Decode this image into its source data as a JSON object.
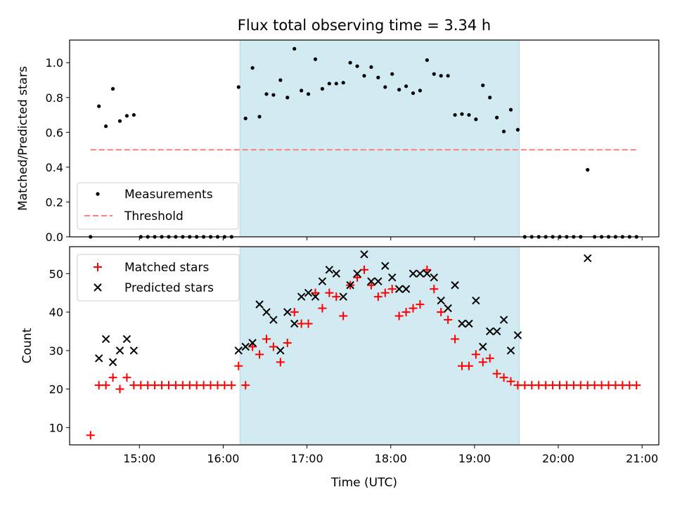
{
  "figure_title": "Flux total observing time = 3.34 h",
  "colors": {
    "shade": "#add8e6",
    "threshold": "#ff8080",
    "matched": "#ff0000",
    "predicted": "#000000",
    "measurement": "#000000"
  },
  "chart_data": [
    {
      "type": "scatter",
      "panel": "top",
      "title": "Flux total observing time = 3.34 h",
      "xlabel": "",
      "ylabel": "Matched/Predicted stars",
      "xlim": [
        "14:10",
        "21:12"
      ],
      "ylim": [
        0,
        1.13
      ],
      "yticks": [
        "0.0",
        "0.2",
        "0.4",
        "0.6",
        "0.8",
        "1.0"
      ],
      "shaded_region": [
        "16:12",
        "19:32"
      ],
      "legend": {
        "position": "lower-left",
        "entries": [
          "Measurements",
          "Threshold"
        ]
      },
      "series": [
        {
          "name": "Measurements",
          "marker": "dot",
          "x": [
            "14:25",
            "14:31",
            "14:36",
            "14:41",
            "14:46",
            "14:51",
            "14:56",
            "15:01",
            "15:06",
            "15:11",
            "15:16",
            "15:21",
            "15:26",
            "15:31",
            "15:36",
            "15:41",
            "15:46",
            "15:51",
            "15:56",
            "16:01",
            "16:06",
            "16:11",
            "16:16",
            "16:21",
            "16:26",
            "16:31",
            "16:36",
            "16:41",
            "16:46",
            "16:51",
            "16:56",
            "17:01",
            "17:06",
            "17:11",
            "17:16",
            "17:21",
            "17:26",
            "17:31",
            "17:36",
            "17:41",
            "17:46",
            "17:51",
            "17:56",
            "18:01",
            "18:06",
            "18:11",
            "18:16",
            "18:21",
            "18:26",
            "18:31",
            "18:36",
            "18:41",
            "18:46",
            "18:51",
            "18:56",
            "19:01",
            "19:06",
            "19:11",
            "19:16",
            "19:21",
            "19:26",
            "19:31",
            "19:36",
            "19:41",
            "19:46",
            "19:51",
            "19:56",
            "20:01",
            "20:06",
            "20:11",
            "20:16",
            "20:21",
            "20:26",
            "20:31",
            "20:36",
            "20:41",
            "20:46",
            "20:51",
            "20:56"
          ],
          "values": [
            0.0,
            0.75,
            0.635,
            0.85,
            0.665,
            0.695,
            0.7,
            0.0,
            0.0,
            0.0,
            0.0,
            0.0,
            0.0,
            0.0,
            0.0,
            0.0,
            0.0,
            0.0,
            0.0,
            0.0,
            0.0,
            0.86,
            0.68,
            0.97,
            0.69,
            0.82,
            0.815,
            0.9,
            0.8,
            1.08,
            0.84,
            0.82,
            1.02,
            0.85,
            0.88,
            0.88,
            0.885,
            1.0,
            0.98,
            0.925,
            0.975,
            0.915,
            0.86,
            0.935,
            0.845,
            0.865,
            0.825,
            0.84,
            1.015,
            0.935,
            0.925,
            0.925,
            0.7,
            0.705,
            0.7,
            0.675,
            0.87,
            0.8,
            0.685,
            0.605,
            0.73,
            0.615,
            0.0,
            0.0,
            0.0,
            0.0,
            0.0,
            0.0,
            0.0,
            0.0,
            0.0,
            0.385,
            0.0,
            0.0,
            0.0,
            0.0,
            0.0,
            0.0,
            0.0
          ]
        },
        {
          "name": "Threshold",
          "style": "dashed",
          "x": [
            "14:25",
            "20:56"
          ],
          "values": [
            0.5,
            0.5
          ]
        }
      ]
    },
    {
      "type": "scatter",
      "panel": "bottom",
      "xlabel": "Time (UTC)",
      "ylabel": "Count",
      "xlim": [
        "14:10",
        "21:12"
      ],
      "ylim": [
        5.5,
        57
      ],
      "xticks": [
        "15:00",
        "16:00",
        "17:00",
        "18:00",
        "19:00",
        "20:00",
        "21:00"
      ],
      "yticks": [
        "10",
        "20",
        "30",
        "40",
        "50"
      ],
      "shaded_region": [
        "16:12",
        "19:32"
      ],
      "legend": {
        "position": "top-left",
        "entries": [
          "Matched stars",
          "Predicted stars"
        ]
      },
      "series": [
        {
          "name": "Matched stars",
          "marker": "plus",
          "x": [
            "14:25",
            "14:31",
            "14:36",
            "14:41",
            "14:46",
            "14:51",
            "14:56",
            "15:01",
            "15:06",
            "15:11",
            "15:16",
            "15:21",
            "15:26",
            "15:31",
            "15:36",
            "15:41",
            "15:46",
            "15:51",
            "15:56",
            "16:01",
            "16:06",
            "16:11",
            "16:16",
            "16:21",
            "16:26",
            "16:31",
            "16:36",
            "16:41",
            "16:46",
            "16:51",
            "16:56",
            "17:01",
            "17:06",
            "17:11",
            "17:16",
            "17:21",
            "17:26",
            "17:31",
            "17:36",
            "17:41",
            "17:46",
            "17:51",
            "17:56",
            "18:01",
            "18:06",
            "18:11",
            "18:16",
            "18:21",
            "18:26",
            "18:31",
            "18:36",
            "18:41",
            "18:46",
            "18:51",
            "18:56",
            "19:01",
            "19:06",
            "19:11",
            "19:16",
            "19:21",
            "19:26",
            "19:31",
            "19:36",
            "19:41",
            "19:46",
            "19:51",
            "19:56",
            "20:01",
            "20:06",
            "20:11",
            "20:16",
            "20:21",
            "20:26",
            "20:31",
            "20:36",
            "20:41",
            "20:46",
            "20:51",
            "20:56"
          ],
          "values": [
            8,
            21,
            21,
            23,
            20,
            23,
            21,
            21,
            21,
            21,
            21,
            21,
            21,
            21,
            21,
            21,
            21,
            21,
            21,
            21,
            21,
            26,
            21,
            31,
            29,
            33,
            31,
            27,
            32,
            40,
            37,
            37,
            45,
            41,
            45,
            44,
            39,
            47,
            49,
            51,
            47,
            44,
            45,
            46,
            39,
            40,
            41,
            42,
            51,
            46,
            40,
            38,
            33,
            26,
            26,
            29,
            27,
            28,
            24,
            23,
            22,
            21,
            21,
            21,
            21,
            21,
            21,
            21,
            21,
            21,
            21,
            21,
            21,
            21,
            21,
            21,
            21,
            21,
            21
          ]
        },
        {
          "name": "Predicted stars",
          "marker": "x",
          "x": [
            "14:31",
            "14:36",
            "14:41",
            "14:46",
            "14:51",
            "14:56",
            "16:11",
            "16:16",
            "16:21",
            "16:26",
            "16:31",
            "16:36",
            "16:41",
            "16:46",
            "16:51",
            "16:56",
            "17:01",
            "17:06",
            "17:11",
            "17:16",
            "17:21",
            "17:26",
            "17:31",
            "17:36",
            "17:41",
            "17:46",
            "17:51",
            "17:56",
            "18:01",
            "18:06",
            "18:11",
            "18:16",
            "18:21",
            "18:26",
            "18:31",
            "18:36",
            "18:41",
            "18:46",
            "18:51",
            "18:56",
            "19:01",
            "19:06",
            "19:11",
            "19:16",
            "19:21",
            "19:26",
            "19:31",
            "20:21"
          ],
          "values": [
            28,
            33,
            27,
            30,
            33,
            30,
            30,
            31,
            32,
            42,
            40,
            38,
            30,
            40,
            37,
            44,
            45,
            44,
            48,
            51,
            50,
            44,
            47,
            50,
            55,
            48,
            48,
            52,
            49,
            46,
            46,
            50,
            50,
            50,
            49,
            43,
            41,
            47,
            37,
            37,
            43,
            31,
            35,
            35,
            38,
            30,
            34,
            54
          ]
        }
      ]
    }
  ]
}
